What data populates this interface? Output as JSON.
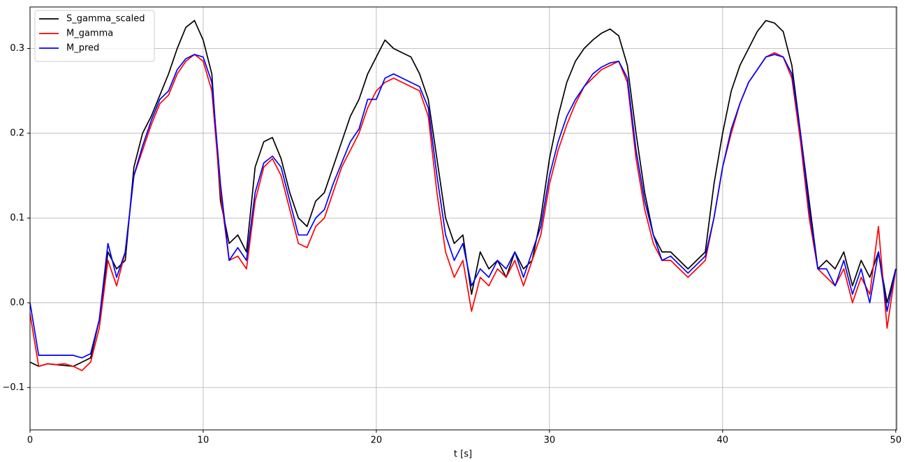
{
  "chart_data": {
    "type": "line",
    "xlabel": "t [s]",
    "x": [
      0,
      0.5,
      1,
      1.5,
      2,
      2.5,
      3,
      3.5,
      4,
      4.5,
      5,
      5.5,
      6,
      6.5,
      7,
      7.5,
      8,
      8.5,
      9,
      9.5,
      10,
      10.5,
      11,
      11.5,
      12,
      12.5,
      13,
      13.5,
      14,
      14.5,
      15,
      15.5,
      16,
      16.5,
      17,
      17.5,
      18,
      18.5,
      19,
      19.5,
      20,
      20.5,
      21,
      21.5,
      22,
      22.5,
      23,
      23.5,
      24,
      24.5,
      25,
      25.5,
      26,
      26.5,
      27,
      27.5,
      28,
      28.5,
      29,
      29.5,
      30,
      30.5,
      31,
      31.5,
      32,
      32.5,
      33,
      33.5,
      34,
      34.5,
      35,
      35.5,
      36,
      36.5,
      37,
      37.5,
      38,
      38.5,
      39,
      39.5,
      40,
      40.5,
      41,
      41.5,
      42,
      42.5,
      43,
      43.5,
      44,
      44.5,
      45,
      45.5,
      46,
      46.5,
      47,
      47.5,
      48,
      48.5,
      49,
      49.5,
      50
    ],
    "series": [
      {
        "name": "S_gamma_scaled",
        "color": "#000000",
        "values": [
          -0.07,
          -0.075,
          -0.072,
          -0.073,
          -0.074,
          -0.075,
          -0.07,
          -0.065,
          -0.02,
          0.06,
          0.04,
          0.05,
          0.16,
          0.2,
          0.22,
          0.245,
          0.27,
          0.3,
          0.325,
          0.333,
          0.31,
          0.27,
          0.12,
          0.07,
          0.08,
          0.06,
          0.16,
          0.19,
          0.195,
          0.17,
          0.13,
          0.1,
          0.09,
          0.12,
          0.13,
          0.16,
          0.19,
          0.22,
          0.24,
          0.27,
          0.29,
          0.31,
          0.3,
          0.295,
          0.29,
          0.27,
          0.24,
          0.17,
          0.1,
          0.07,
          0.08,
          0.01,
          0.06,
          0.04,
          0.05,
          0.03,
          0.06,
          0.04,
          0.05,
          0.1,
          0.17,
          0.22,
          0.26,
          0.285,
          0.3,
          0.31,
          0.318,
          0.323,
          0.315,
          0.28,
          0.2,
          0.13,
          0.08,
          0.06,
          0.06,
          0.05,
          0.04,
          0.05,
          0.06,
          0.14,
          0.2,
          0.25,
          0.28,
          0.3,
          0.32,
          0.333,
          0.33,
          0.32,
          0.28,
          0.2,
          0.12,
          0.04,
          0.05,
          0.04,
          0.06,
          0.02,
          0.05,
          0.03,
          0.06,
          0.0,
          0.04
        ]
      },
      {
        "name": "M_gamma",
        "color": "#ff0000",
        "values": [
          -0.013,
          -0.075,
          -0.072,
          -0.073,
          -0.072,
          -0.075,
          -0.08,
          -0.07,
          -0.03,
          0.05,
          0.02,
          0.06,
          0.15,
          0.18,
          0.21,
          0.235,
          0.245,
          0.27,
          0.285,
          0.293,
          0.285,
          0.25,
          0.13,
          0.05,
          0.055,
          0.04,
          0.12,
          0.16,
          0.17,
          0.15,
          0.11,
          0.07,
          0.065,
          0.09,
          0.1,
          0.13,
          0.16,
          0.18,
          0.2,
          0.23,
          0.25,
          0.26,
          0.265,
          0.26,
          0.255,
          0.25,
          0.22,
          0.13,
          0.06,
          0.03,
          0.05,
          -0.01,
          0.03,
          0.02,
          0.04,
          0.03,
          0.05,
          0.02,
          0.05,
          0.08,
          0.14,
          0.18,
          0.21,
          0.235,
          0.255,
          0.265,
          0.275,
          0.28,
          0.285,
          0.26,
          0.17,
          0.11,
          0.07,
          0.05,
          0.05,
          0.04,
          0.03,
          0.04,
          0.05,
          0.1,
          0.16,
          0.2,
          0.235,
          0.26,
          0.275,
          0.29,
          0.295,
          0.29,
          0.265,
          0.19,
          0.1,
          0.04,
          0.03,
          0.02,
          0.04,
          0.0,
          0.03,
          0.01,
          0.09,
          -0.03,
          0.04
        ]
      },
      {
        "name": "M_pred",
        "color": "#0000ff",
        "values": [
          0.0,
          -0.062,
          -0.062,
          -0.062,
          -0.062,
          -0.062,
          -0.065,
          -0.06,
          -0.02,
          0.07,
          0.03,
          0.06,
          0.15,
          0.185,
          0.215,
          0.24,
          0.25,
          0.275,
          0.288,
          0.293,
          0.29,
          0.26,
          0.14,
          0.05,
          0.065,
          0.05,
          0.13,
          0.165,
          0.173,
          0.16,
          0.12,
          0.08,
          0.08,
          0.1,
          0.11,
          0.14,
          0.165,
          0.19,
          0.205,
          0.24,
          0.24,
          0.265,
          0.27,
          0.265,
          0.26,
          0.255,
          0.23,
          0.15,
          0.08,
          0.05,
          0.07,
          0.02,
          0.04,
          0.03,
          0.05,
          0.04,
          0.06,
          0.03,
          0.06,
          0.09,
          0.15,
          0.19,
          0.22,
          0.24,
          0.255,
          0.27,
          0.278,
          0.283,
          0.285,
          0.265,
          0.18,
          0.12,
          0.08,
          0.05,
          0.055,
          0.045,
          0.035,
          0.045,
          0.055,
          0.1,
          0.16,
          0.205,
          0.235,
          0.26,
          0.275,
          0.29,
          0.293,
          0.29,
          0.27,
          0.2,
          0.11,
          0.04,
          0.04,
          0.02,
          0.05,
          0.01,
          0.04,
          0.0,
          0.06,
          -0.01,
          0.04
        ]
      }
    ],
    "xlim": [
      0,
      50.05
    ],
    "ylim": [
      -0.15,
      0.349
    ],
    "xticks": [
      0,
      10,
      20,
      30,
      40,
      50
    ],
    "yticks": [
      {
        "value": -0.1,
        "label": "−0.1"
      },
      {
        "value": 0,
        "label": "0.0"
      },
      0.1,
      0.2,
      0.3
    ],
    "grid": true,
    "legend": "upper left"
  }
}
